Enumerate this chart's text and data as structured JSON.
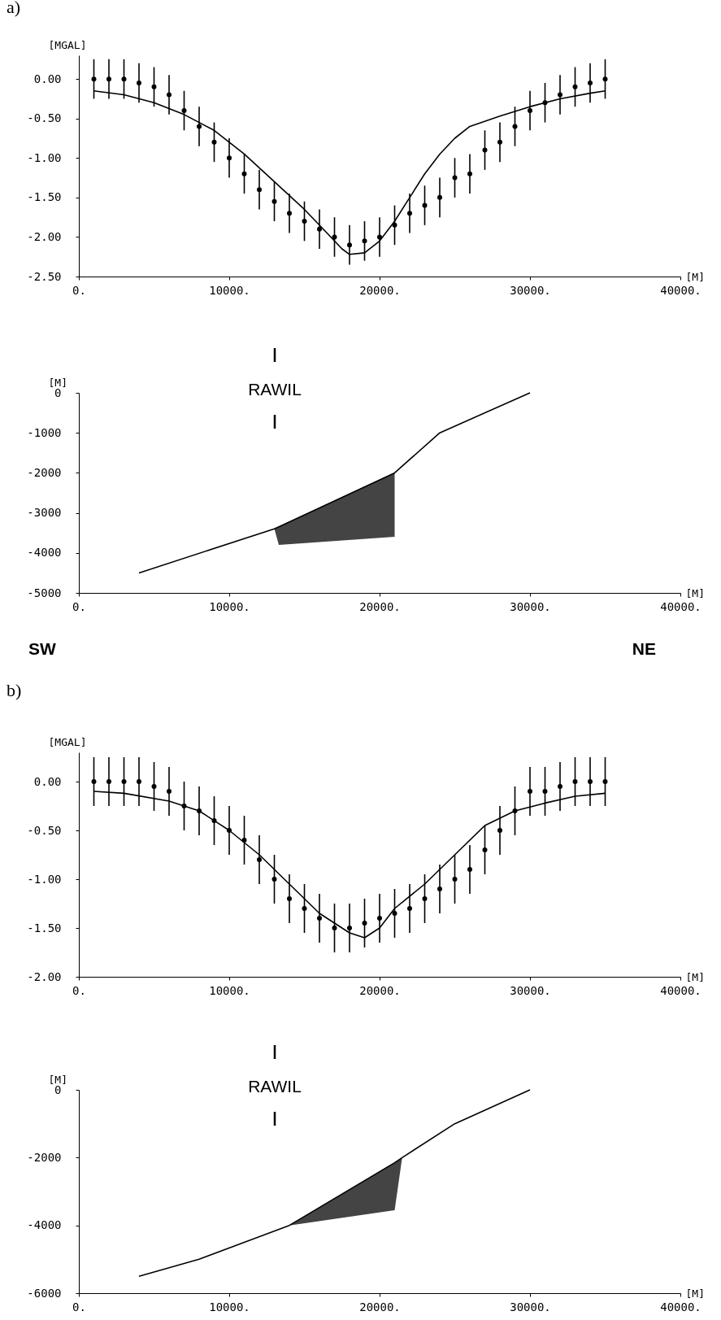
{
  "chart_data": [
    {
      "type": "scatter",
      "title": "a)",
      "ylabel": "[MGAL]",
      "xlabel": "[M]",
      "xlim": [
        0,
        40000
      ],
      "ylim": [
        -2.5,
        0.3
      ],
      "xticks": [
        {
          "value": 0,
          "label": "0."
        },
        {
          "value": 10000,
          "label": "10000."
        },
        {
          "value": 20000,
          "label": "20000."
        },
        {
          "value": 30000,
          "label": "30000."
        },
        {
          "value": 40000,
          "label": "40000."
        }
      ],
      "yticks": [
        {
          "value": 0,
          "label": "0.00"
        },
        {
          "value": -0.5,
          "label": "-0.50"
        },
        {
          "value": -1,
          "label": "-1.00"
        },
        {
          "value": -1.5,
          "label": "-1.50"
        },
        {
          "value": -2,
          "label": "-2.00"
        },
        {
          "value": -2.5,
          "label": "-2.50"
        }
      ],
      "series": [
        {
          "color": "#000000",
          "marker": "circle",
          "x": [
            1000,
            2000,
            3000,
            4000,
            5000,
            6000,
            7000,
            8000,
            9000,
            10000,
            11000,
            12000,
            13000,
            14000,
            15000,
            16000,
            17000,
            18000,
            19000,
            20000,
            21000,
            22000,
            23000,
            24000,
            25000,
            26000,
            27000,
            28000,
            29000,
            30000,
            31000,
            32000,
            33000,
            34000,
            35000
          ],
          "values": [
            0,
            0,
            0,
            -0.05,
            -0.1,
            -0.2,
            -0.4,
            -0.6,
            -0.8,
            -1.0,
            -1.2,
            -1.4,
            -1.55,
            -1.7,
            -1.8,
            -1.9,
            -2.0,
            -2.1,
            -2.05,
            -2.0,
            -1.85,
            -1.7,
            -1.6,
            -1.5,
            -1.25,
            -1.2,
            -0.9,
            -0.8,
            -0.6,
            -0.4,
            -0.3,
            -0.2,
            -0.1,
            -0.05,
            0
          ],
          "errors": [
            0.25,
            0.25,
            0.25,
            0.25,
            0.25,
            0.25,
            0.25,
            0.25,
            0.25,
            0.25,
            0.25,
            0.25,
            0.25,
            0.25,
            0.25,
            0.25,
            0.25,
            0.25,
            0.25,
            0.25,
            0.25,
            0.25,
            0.25,
            0.25,
            0.25,
            0.25,
            0.25,
            0.25,
            0.25,
            0.25,
            0.25,
            0.25,
            0.25,
            0.25,
            0.25
          ]
        },
        {
          "type": "line",
          "color": "#000000",
          "line_style": "solid",
          "x": [
            1000,
            3000,
            5000,
            7000,
            9000,
            11000,
            13000,
            15000,
            16500,
            17500,
            18000,
            19000,
            20000,
            21000,
            22000,
            23000,
            24000,
            25000,
            26000,
            28000,
            30000,
            32000,
            34000,
            35000
          ],
          "values": [
            -0.15,
            -0.2,
            -0.3,
            -0.45,
            -0.65,
            -0.95,
            -1.3,
            -1.65,
            -1.95,
            -2.15,
            -2.22,
            -2.2,
            -2.05,
            -1.8,
            -1.5,
            -1.2,
            -0.95,
            -0.75,
            -0.6,
            -0.47,
            -0.35,
            -0.25,
            -0.18,
            -0.15
          ]
        }
      ]
    },
    {
      "type": "line",
      "ylabel": "[M]",
      "xlabel": "[M]",
      "xlim": [
        0,
        40000
      ],
      "ylim": [
        -5000,
        0
      ],
      "xticks": [
        {
          "value": 0,
          "label": "0."
        },
        {
          "value": 10000,
          "label": "10000."
        },
        {
          "value": 20000,
          "label": "20000."
        },
        {
          "value": 30000,
          "label": "30000."
        },
        {
          "value": 40000,
          "label": "40000."
        }
      ],
      "yticks": [
        0,
        -1000,
        -2000,
        -3000,
        -4000,
        -5000
      ],
      "annotations": [
        "RAWIL",
        "SW",
        "NE"
      ],
      "series": [
        {
          "color": "#000000",
          "line_style": "solid",
          "x": [
            4000,
            13000,
            13300,
            21000,
            24000,
            30000
          ],
          "values": [
            -4500,
            -3400,
            -3350,
            -2000,
            -1000,
            0
          ],
          "lower": [
            null,
            -3400,
            -3800,
            -3600,
            null,
            null
          ],
          "upper": [
            null,
            -3400,
            -3350,
            -2000,
            null,
            null
          ]
        }
      ]
    },
    {
      "type": "scatter",
      "title": "b)",
      "ylabel": "[MGAL]",
      "xlabel": "[M]",
      "xlim": [
        0,
        40000
      ],
      "ylim": [
        -2.0,
        0.3
      ],
      "xticks": [
        {
          "value": 0,
          "label": "0."
        },
        {
          "value": 10000,
          "label": "10000."
        },
        {
          "value": 20000,
          "label": "20000."
        },
        {
          "value": 30000,
          "label": "30000."
        },
        {
          "value": 40000,
          "label": "40000."
        }
      ],
      "yticks": [
        {
          "value": 0,
          "label": "0.00"
        },
        {
          "value": -0.5,
          "label": "-0.50"
        },
        {
          "value": -1,
          "label": "-1.00"
        },
        {
          "value": -1.5,
          "label": "-1.50"
        },
        {
          "value": -2,
          "label": "-2.00"
        }
      ],
      "series": [
        {
          "color": "#000000",
          "marker": "circle",
          "x": [
            1000,
            2000,
            3000,
            4000,
            5000,
            6000,
            7000,
            8000,
            9000,
            10000,
            11000,
            12000,
            13000,
            14000,
            15000,
            16000,
            17000,
            18000,
            19000,
            20000,
            21000,
            22000,
            23000,
            24000,
            25000,
            26000,
            27000,
            28000,
            29000,
            30000,
            31000,
            32000,
            33000,
            34000,
            35000
          ],
          "values": [
            0,
            0,
            0,
            0,
            -0.05,
            -0.1,
            -0.25,
            -0.3,
            -0.4,
            -0.5,
            -0.6,
            -0.8,
            -1.0,
            -1.2,
            -1.3,
            -1.4,
            -1.5,
            -1.5,
            -1.45,
            -1.4,
            -1.35,
            -1.3,
            -1.2,
            -1.1,
            -1.0,
            -0.9,
            -0.7,
            -0.5,
            -0.3,
            -0.1,
            -0.1,
            -0.05,
            0,
            0,
            0
          ],
          "errors": [
            0.25,
            0.25,
            0.25,
            0.25,
            0.25,
            0.25,
            0.25,
            0.25,
            0.25,
            0.25,
            0.25,
            0.25,
            0.25,
            0.25,
            0.25,
            0.25,
            0.25,
            0.25,
            0.25,
            0.25,
            0.25,
            0.25,
            0.25,
            0.25,
            0.25,
            0.25,
            0.25,
            0.25,
            0.25,
            0.25,
            0.25,
            0.25,
            0.25,
            0.25,
            0.25
          ]
        },
        {
          "type": "line",
          "color": "#000000",
          "line_style": "solid",
          "x": [
            1000,
            3000,
            6000,
            8000,
            10000,
            12000,
            14000,
            16000,
            18000,
            19000,
            20000,
            21000,
            23000,
            25000,
            27000,
            29000,
            31000,
            33000,
            35000
          ],
          "values": [
            -0.1,
            -0.12,
            -0.2,
            -0.3,
            -0.5,
            -0.75,
            -1.05,
            -1.35,
            -1.55,
            -1.6,
            -1.5,
            -1.3,
            -1.05,
            -0.75,
            -0.45,
            -0.3,
            -0.22,
            -0.15,
            -0.12
          ]
        }
      ]
    },
    {
      "type": "line",
      "ylabel": "[M]",
      "xlabel": "[M]",
      "xlim": [
        0,
        40000
      ],
      "ylim": [
        -6000,
        0
      ],
      "xticks": [
        {
          "value": 0,
          "label": "0."
        },
        {
          "value": 10000,
          "label": "10000."
        },
        {
          "value": 20000,
          "label": "20000."
        },
        {
          "value": 30000,
          "label": "30000."
        },
        {
          "value": 40000,
          "label": "40000."
        }
      ],
      "yticks": [
        0,
        -2000,
        -4000,
        -6000
      ],
      "annotations": [
        "RAWIL"
      ],
      "series": [
        {
          "color": "#000000",
          "line_style": "solid",
          "x": [
            4000,
            8000,
            14000,
            21000,
            21500,
            25000,
            30000
          ],
          "values": [
            -5500,
            -5000,
            -4000,
            -2150,
            -2000,
            -1000,
            0
          ],
          "lower": [
            null,
            null,
            -4000,
            -3550,
            -2000,
            null,
            null
          ],
          "upper": [
            null,
            null,
            -4000,
            -2150,
            -2000,
            null,
            null
          ]
        }
      ]
    }
  ]
}
